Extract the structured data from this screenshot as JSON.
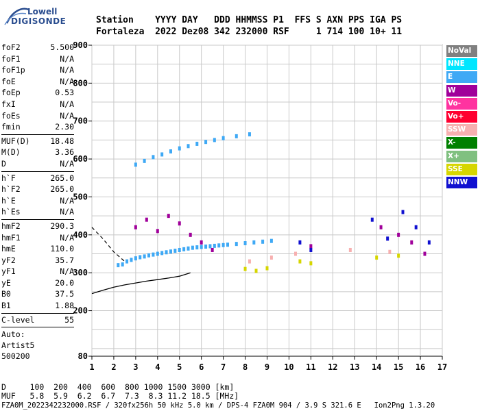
{
  "logo": {
    "line1": "Lowell",
    "line2": "DIGISONDE"
  },
  "header": {
    "line1": "Station    YYYY DAY   DDD HHMMSS P1  FFS S AXN PPS IGA PS",
    "line2": "Fortaleza  2022 Dez08 342 232000 RSF     1 714 100 10+ 11"
  },
  "params": {
    "group1": [
      {
        "name": "foF2",
        "value": "5.500"
      },
      {
        "name": "foF1",
        "value": "N/A"
      },
      {
        "name": "foF1p",
        "value": "N/A"
      },
      {
        "name": "foE",
        "value": "N/A"
      },
      {
        "name": "foEp",
        "value": "0.53"
      },
      {
        "name": "fxI",
        "value": "N/A"
      },
      {
        "name": "foEs",
        "value": "N/A"
      },
      {
        "name": "fmin",
        "value": "2.30"
      }
    ],
    "group2": [
      {
        "name": "MUF(D)",
        "value": "18.48"
      },
      {
        "name": "M(D)",
        "value": "3.36"
      },
      {
        "name": "D",
        "value": "N/A"
      }
    ],
    "group3": [
      {
        "name": "h`F",
        "value": "265.0"
      },
      {
        "name": "h`F2",
        "value": "265.0"
      },
      {
        "name": "h`E",
        "value": "N/A"
      },
      {
        "name": "h`Es",
        "value": "N/A"
      }
    ],
    "group4": [
      {
        "name": "hmF2",
        "value": "290.3"
      },
      {
        "name": "hmF1",
        "value": "N/A"
      },
      {
        "name": "hmE",
        "value": "110.0"
      },
      {
        "name": "yF2",
        "value": "35.7"
      },
      {
        "name": "yF1",
        "value": "N/A"
      },
      {
        "name": "yE",
        "value": "20.0"
      },
      {
        "name": "B0",
        "value": "37.5"
      },
      {
        "name": "B1",
        "value": "1.88"
      }
    ],
    "group5": [
      {
        "name": "C-level",
        "value": "55"
      }
    ],
    "auto": [
      "Auto:",
      "Artist5",
      "500200"
    ]
  },
  "legend": [
    {
      "label": "NoVal",
      "bg": "#808080",
      "fg": "#ffffff"
    },
    {
      "label": "NNE",
      "bg": "#00e6ff",
      "fg": "#ffffff"
    },
    {
      "label": "E",
      "bg": "#3fa9f5",
      "fg": "#ffffff"
    },
    {
      "label": "W",
      "bg": "#a0009a",
      "fg": "#ffffff"
    },
    {
      "label": "Vo-",
      "bg": "#ff33a0",
      "fg": "#ffffff"
    },
    {
      "label": "Vo+",
      "bg": "#ff0030",
      "fg": "#ffffff"
    },
    {
      "label": "SSW",
      "bg": "#f7b0b0",
      "fg": "#ffffff"
    },
    {
      "label": "X-",
      "bg": "#008000",
      "fg": "#ffffff"
    },
    {
      "label": "X+",
      "bg": "#80c080",
      "fg": "#ffffff"
    },
    {
      "label": "SSE",
      "bg": "#d6d600",
      "fg": "#ffffff"
    },
    {
      "label": "NNW",
      "bg": "#1010d0",
      "fg": "#ffffff"
    }
  ],
  "footer": {
    "line1": "D     100  200  400  600  800 1000 1500 3000 [km]",
    "line2": "MUF   5.8  5.9  6.2  6.7  7.3  8.3 11.2 18.5 [MHz]",
    "line3": "FZA0M_2022342232000.RSF / 320fx256h 50 kHz 5.0 km / DPS-4 FZA0M 904 / 3.9 S 321.6 E   Ion2Png 1.3.20"
  },
  "chart_data": {
    "type": "scatter",
    "title": "",
    "xlabel": "",
    "ylabel": "",
    "xlim": [
      1,
      17
    ],
    "ylim": [
      80,
      900
    ],
    "x_ticks": [
      1,
      2,
      3,
      4,
      5,
      6,
      7,
      8,
      9,
      10,
      11,
      12,
      13,
      14,
      15,
      16,
      17
    ],
    "y_ticks": [
      80,
      200,
      300,
      400,
      500,
      600,
      700,
      800,
      900
    ],
    "grid": true,
    "legend_placement": "right",
    "series": [
      {
        "name": "E",
        "color": "#3fa9f5",
        "points": [
          [
            2.2,
            320
          ],
          [
            2.4,
            322
          ],
          [
            2.6,
            330
          ],
          [
            2.8,
            334
          ],
          [
            3.0,
            338
          ],
          [
            3.2,
            341
          ],
          [
            3.4,
            343
          ],
          [
            3.6,
            346
          ],
          [
            3.8,
            348
          ],
          [
            4.0,
            350
          ],
          [
            4.2,
            352
          ],
          [
            4.4,
            354
          ],
          [
            4.6,
            356
          ],
          [
            4.8,
            358
          ],
          [
            5.0,
            360
          ],
          [
            5.2,
            362
          ],
          [
            5.4,
            364
          ],
          [
            5.6,
            366
          ],
          [
            5.8,
            367
          ],
          [
            6.0,
            368
          ],
          [
            6.2,
            369
          ],
          [
            6.4,
            370
          ],
          [
            6.6,
            371
          ],
          [
            6.8,
            372
          ],
          [
            7.0,
            373
          ],
          [
            7.2,
            374
          ],
          [
            7.6,
            376
          ],
          [
            8.0,
            378
          ],
          [
            8.4,
            380
          ],
          [
            8.8,
            382
          ],
          [
            9.2,
            384
          ],
          [
            3.0,
            585
          ],
          [
            3.4,
            595
          ],
          [
            3.8,
            605
          ],
          [
            4.2,
            612
          ],
          [
            4.6,
            620
          ],
          [
            5.0,
            628
          ],
          [
            5.4,
            634
          ],
          [
            5.8,
            640
          ],
          [
            6.2,
            645
          ],
          [
            6.6,
            650
          ],
          [
            7.0,
            655
          ],
          [
            7.6,
            660
          ],
          [
            8.2,
            665
          ]
        ]
      },
      {
        "name": "W",
        "color": "#a0009a",
        "points": [
          [
            3.0,
            420
          ],
          [
            3.5,
            440
          ],
          [
            4.0,
            410
          ],
          [
            4.5,
            450
          ],
          [
            5.0,
            430
          ],
          [
            5.5,
            400
          ],
          [
            6.0,
            380
          ],
          [
            6.5,
            360
          ],
          [
            11.0,
            370
          ],
          [
            14.2,
            420
          ],
          [
            15.0,
            400
          ],
          [
            15.6,
            380
          ],
          [
            16.2,
            350
          ]
        ]
      },
      {
        "name": "NNW",
        "color": "#1010d0",
        "points": [
          [
            10.5,
            380
          ],
          [
            11.0,
            360
          ],
          [
            13.8,
            440
          ],
          [
            14.5,
            390
          ],
          [
            15.2,
            460
          ],
          [
            15.8,
            420
          ],
          [
            16.4,
            380
          ]
        ]
      },
      {
        "name": "SSE",
        "color": "#d6d600",
        "points": [
          [
            8.0,
            310
          ],
          [
            8.5,
            305
          ],
          [
            9.0,
            312
          ],
          [
            10.5,
            330
          ],
          [
            11.0,
            325
          ],
          [
            14.0,
            340
          ],
          [
            15.0,
            345
          ]
        ]
      },
      {
        "name": "SSW",
        "color": "#f7b0b0",
        "points": [
          [
            8.2,
            330
          ],
          [
            9.2,
            340
          ],
          [
            10.3,
            350
          ],
          [
            12.8,
            360
          ],
          [
            14.6,
            355
          ]
        ]
      }
    ],
    "model_profile": {
      "name": "",
      "color": "#000000",
      "points": [
        [
          1.0,
          245
        ],
        [
          1.5,
          254
        ],
        [
          2.0,
          262
        ],
        [
          2.5,
          268
        ],
        [
          3.0,
          273
        ],
        [
          3.5,
          278
        ],
        [
          4.0,
          282
        ],
        [
          4.5,
          286
        ],
        [
          5.0,
          291
        ],
        [
          5.5,
          300
        ]
      ]
    },
    "dashed_curve": {
      "name": "",
      "color": "#000000",
      "points": [
        [
          1.0,
          420
        ],
        [
          1.5,
          390
        ],
        [
          2.0,
          355
        ],
        [
          2.5,
          330
        ]
      ]
    }
  }
}
